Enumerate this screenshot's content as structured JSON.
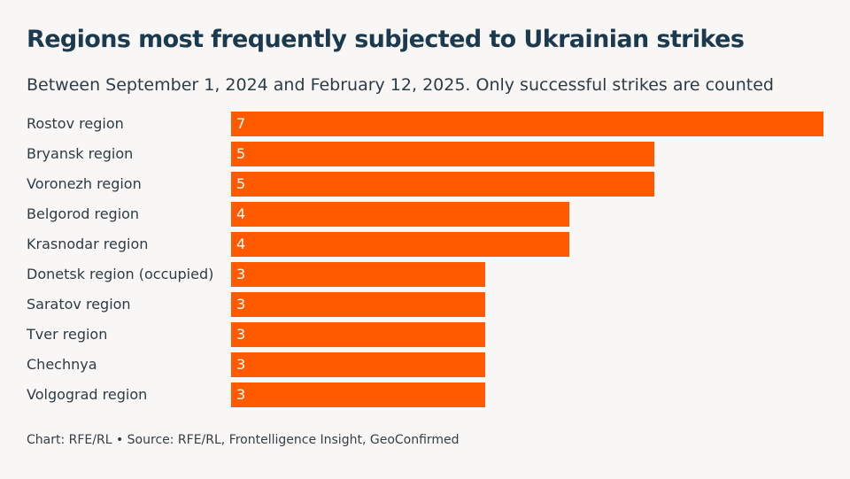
{
  "chart_data": {
    "type": "bar",
    "orientation": "horizontal",
    "title": "Regions most frequently subjected to Ukrainian strikes",
    "subtitle": "Between September 1, 2024 and February 12, 2025. Only successful strikes are counted",
    "categories": [
      "Rostov region",
      "Bryansk region",
      "Voronezh region",
      "Belgorod region",
      "Krasnodar region",
      "Donetsk region (occupied)",
      "Saratov region",
      "Tver region",
      "Chechnya",
      "Volgograd region"
    ],
    "values": [
      7,
      5,
      5,
      4,
      4,
      3,
      3,
      3,
      3,
      3
    ],
    "xlim": [
      0,
      7
    ],
    "grid": false,
    "legend": "none",
    "bar_color": "#ff5a00",
    "value_label_color": "#ffffff"
  },
  "footer": {
    "credit": "Chart: RFE/RL • Source: RFE/RL, Frontelligence Insight, GeoConfirmed"
  }
}
